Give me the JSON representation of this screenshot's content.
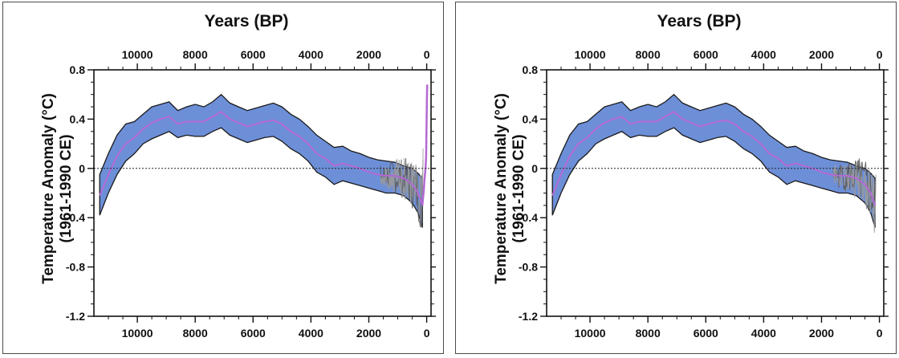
{
  "chart_data": [
    {
      "type": "area",
      "title": "Years (BP)",
      "xlabel": "",
      "ylabel": "Temperature Anomaly (°C)",
      "ylabel_line2": "(1961-1990 CE)",
      "xlim": [
        11500,
        -150
      ],
      "ylim": [
        -1.2,
        0.8
      ],
      "x_axis_reversed": true,
      "x_ticks": [
        "10000",
        "8000",
        "6000",
        "4000",
        "2000",
        "0"
      ],
      "y_ticks": [
        "0.8",
        "0.4",
        "0",
        "-0.4",
        "-0.8",
        "-1.2"
      ],
      "zero_line": "dotted",
      "grid": false,
      "colors": {
        "band": "#6d8fd8",
        "band_edge": "#1a1a1a",
        "mean": "#b469d4",
        "instrumental": "#b469d4",
        "proxy_lines": "#9a9a9a"
      },
      "x": [
        11300,
        11000,
        10700,
        10400,
        10100,
        9800,
        9500,
        9200,
        8900,
        8600,
        8300,
        8000,
        7700,
        7400,
        7100,
        6800,
        6500,
        6200,
        5900,
        5600,
        5300,
        5000,
        4700,
        4400,
        4100,
        3800,
        3500,
        3200,
        2900,
        2600,
        2300,
        2000,
        1700,
        1400,
        1100,
        800,
        500,
        300,
        150
      ],
      "series": [
        {
          "values": [
            -0.22,
            -0.05,
            0.1,
            0.2,
            0.25,
            0.32,
            0.37,
            0.4,
            0.42,
            0.36,
            0.38,
            0.38,
            0.38,
            0.42,
            0.46,
            0.4,
            0.37,
            0.34,
            0.36,
            0.38,
            0.39,
            0.36,
            0.3,
            0.26,
            0.2,
            0.12,
            0.08,
            0.02,
            0.04,
            0.02,
            0.0,
            -0.03,
            -0.05,
            -0.06,
            -0.06,
            -0.08,
            -0.13,
            -0.2,
            -0.3
          ]
        },
        {
          "values": [
            -0.05,
            0.12,
            0.27,
            0.36,
            0.38,
            0.44,
            0.5,
            0.52,
            0.54,
            0.47,
            0.5,
            0.52,
            0.5,
            0.54,
            0.6,
            0.53,
            0.5,
            0.47,
            0.49,
            0.51,
            0.53,
            0.5,
            0.44,
            0.4,
            0.34,
            0.27,
            0.22,
            0.17,
            0.18,
            0.14,
            0.12,
            0.09,
            0.07,
            0.06,
            0.05,
            0.02,
            0.0,
            -0.04,
            -0.08
          ]
        },
        {
          "values": [
            -0.38,
            -0.2,
            -0.05,
            0.06,
            0.12,
            0.2,
            0.24,
            0.27,
            0.3,
            0.25,
            0.27,
            0.26,
            0.26,
            0.3,
            0.33,
            0.27,
            0.24,
            0.21,
            0.23,
            0.25,
            0.26,
            0.22,
            0.16,
            0.12,
            0.06,
            -0.03,
            -0.07,
            -0.13,
            -0.1,
            -0.12,
            -0.14,
            -0.16,
            -0.18,
            -0.2,
            -0.2,
            -0.22,
            -0.28,
            -0.36,
            -0.48
          ]
        }
      ],
      "instrumental": {
        "x": [
          150,
          120,
          100,
          80,
          60,
          40,
          20,
          10,
          0,
          -10,
          -20
        ],
        "y": [
          -0.3,
          -0.22,
          -0.18,
          -0.1,
          -0.05,
          0.0,
          0.1,
          0.25,
          0.45,
          0.62,
          0.68
        ]
      }
    },
    {
      "type": "area",
      "title": "Years (BP)",
      "xlabel": "",
      "ylabel": "Temperature Anomaly (°C)",
      "ylabel_line2": "(1961-1990 CE)",
      "xlim": [
        11500,
        -150
      ],
      "ylim": [
        -1.2,
        0.8
      ],
      "x_axis_reversed": true,
      "x_ticks": [
        "10000",
        "8000",
        "6000",
        "4000",
        "2000",
        "0"
      ],
      "y_ticks": [
        "0.8",
        "0.4",
        "0",
        "-0.4",
        "-0.8",
        "-1.2"
      ],
      "zero_line": "dotted",
      "grid": false,
      "colors": {
        "band": "#6d8fd8",
        "band_edge": "#1a1a1a",
        "mean": "#b469d4",
        "proxy_lines": "#9a9a9a"
      },
      "x": [
        11300,
        11000,
        10700,
        10400,
        10100,
        9800,
        9500,
        9200,
        8900,
        8600,
        8300,
        8000,
        7700,
        7400,
        7100,
        6800,
        6500,
        6200,
        5900,
        5600,
        5300,
        5000,
        4700,
        4400,
        4100,
        3800,
        3500,
        3200,
        2900,
        2600,
        2300,
        2000,
        1700,
        1400,
        1100,
        800,
        500,
        300,
        150
      ],
      "series": [
        {
          "values": [
            -0.22,
            -0.05,
            0.1,
            0.2,
            0.25,
            0.32,
            0.37,
            0.4,
            0.42,
            0.36,
            0.38,
            0.38,
            0.38,
            0.42,
            0.46,
            0.4,
            0.37,
            0.34,
            0.36,
            0.38,
            0.39,
            0.36,
            0.3,
            0.26,
            0.2,
            0.12,
            0.08,
            0.02,
            0.04,
            0.02,
            0.0,
            -0.03,
            -0.05,
            -0.06,
            -0.06,
            -0.08,
            -0.13,
            -0.2,
            -0.3
          ]
        },
        {
          "values": [
            -0.05,
            0.12,
            0.27,
            0.36,
            0.38,
            0.44,
            0.5,
            0.52,
            0.54,
            0.47,
            0.5,
            0.52,
            0.5,
            0.54,
            0.6,
            0.53,
            0.5,
            0.47,
            0.49,
            0.51,
            0.53,
            0.5,
            0.44,
            0.4,
            0.34,
            0.27,
            0.22,
            0.17,
            0.18,
            0.14,
            0.12,
            0.09,
            0.07,
            0.06,
            0.05,
            0.02,
            0.0,
            -0.04,
            -0.08
          ]
        },
        {
          "values": [
            -0.38,
            -0.2,
            -0.05,
            0.06,
            0.12,
            0.2,
            0.24,
            0.27,
            0.3,
            0.25,
            0.27,
            0.26,
            0.26,
            0.3,
            0.33,
            0.27,
            0.24,
            0.21,
            0.23,
            0.25,
            0.26,
            0.22,
            0.16,
            0.12,
            0.06,
            -0.03,
            -0.07,
            -0.13,
            -0.1,
            -0.12,
            -0.14,
            -0.16,
            -0.18,
            -0.2,
            -0.2,
            -0.22,
            -0.28,
            -0.36,
            -0.48
          ]
        }
      ]
    }
  ]
}
